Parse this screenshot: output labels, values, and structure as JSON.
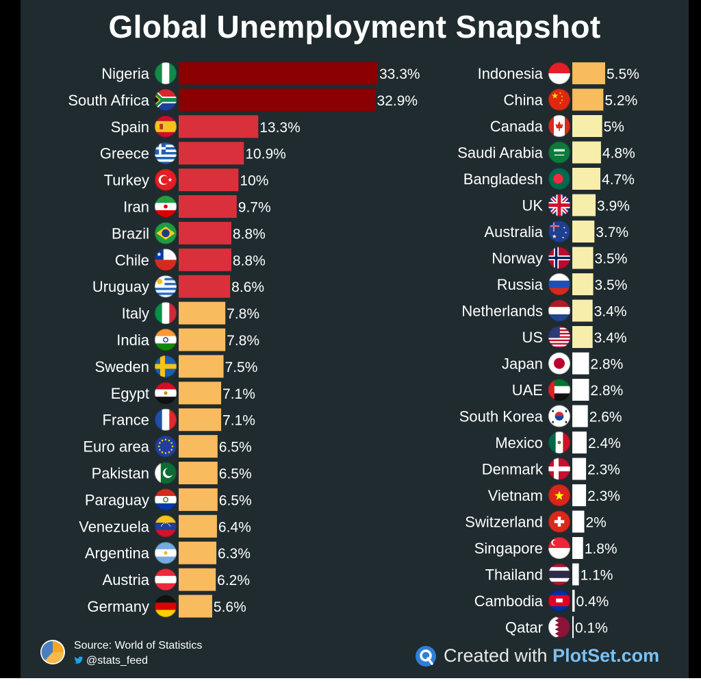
{
  "title": "Global Unemployment Snapshot",
  "footer": {
    "source": "Source: World of Statistics",
    "handle": "@stats_feed",
    "created_prefix": "Created with ",
    "brand": "PlotSet.com"
  },
  "colors": {
    "background": "#1f2b2f",
    "dark_red": "#8b0000",
    "red": "#d9303c",
    "orange": "#f8bb5e",
    "light_yellow": "#f8eeab",
    "white": "#ffffff"
  },
  "chart_data": {
    "type": "bar",
    "orientation": "horizontal",
    "unit": "%",
    "title": "Global Unemployment Snapshot",
    "xlabel": "",
    "ylabel": "",
    "grid": false,
    "legend": "none",
    "columns": [
      {
        "categories": [
          "Nigeria",
          "South Africa",
          "Spain",
          "Greece",
          "Turkey",
          "Iran",
          "Brazil",
          "Chile",
          "Uruguay",
          "Italy",
          "India",
          "Sweden",
          "Egypt",
          "France",
          "Euro area",
          "Pakistan",
          "Paraguay",
          "Venezuela",
          "Argentina",
          "Austria",
          "Germany"
        ],
        "values": [
          33.3,
          32.9,
          13.3,
          10.9,
          10,
          9.7,
          8.8,
          8.8,
          8.6,
          7.8,
          7.8,
          7.5,
          7.1,
          7.1,
          6.5,
          6.5,
          6.5,
          6.4,
          6.3,
          6.2,
          5.6
        ],
        "labels": [
          "33.3%",
          "32.9%",
          "13.3%",
          "10.9%",
          "10%",
          "9.7%",
          "8.8%",
          "8.8%",
          "8.6%",
          "7.8%",
          "7.8%",
          "7.5%",
          "7.1%",
          "7.1%",
          "6.5%",
          "6.5%",
          "6.5%",
          "6.4%",
          "6.3%",
          "6.2%",
          "5.6%"
        ],
        "flags": [
          "flag-nigeria-icon",
          "flag-south-africa-icon",
          "flag-spain-icon",
          "flag-greece-icon",
          "flag-turkey-icon",
          "flag-iran-icon",
          "flag-brazil-icon",
          "flag-chile-icon",
          "flag-uruguay-icon",
          "flag-italy-icon",
          "flag-india-icon",
          "flag-sweden-icon",
          "flag-egypt-icon",
          "flag-france-icon",
          "flag-euro-area-icon",
          "flag-pakistan-icon",
          "flag-paraguay-icon",
          "flag-venezuela-icon",
          "flag-argentina-icon",
          "flag-austria-icon",
          "flag-germany-icon"
        ]
      },
      {
        "categories": [
          "Indonesia",
          "China",
          "Canada",
          "Saudi Arabia",
          "Bangladesh",
          "UK",
          "Australia",
          "Norway",
          "Russia",
          "Netherlands",
          "US",
          "Japan",
          "UAE",
          "South Korea",
          "Mexico",
          "Denmark",
          "Vietnam",
          "Switzerland",
          "Singapore",
          "Thailand",
          "Cambodia",
          "Qatar"
        ],
        "values": [
          5.5,
          5.2,
          5,
          4.8,
          4.7,
          3.9,
          3.7,
          3.5,
          3.5,
          3.4,
          3.4,
          2.8,
          2.8,
          2.6,
          2.4,
          2.3,
          2.3,
          2,
          1.8,
          1.1,
          0.4,
          0.1
        ],
        "labels": [
          "5.5%",
          "5.2%",
          "5%",
          "4.8%",
          "4.7%",
          "3.9%",
          "3.7%",
          "3.5%",
          "3.5%",
          "3.4%",
          "3.4%",
          "2.8%",
          "2.8%",
          "2.6%",
          "2.4%",
          "2.3%",
          "2.3%",
          "2%",
          "1.8%",
          "1.1%",
          "0.4%",
          "0.1%"
        ],
        "flags": [
          "flag-indonesia-icon",
          "flag-china-icon",
          "flag-canada-icon",
          "flag-saudi-arabia-icon",
          "flag-bangladesh-icon",
          "flag-uk-icon",
          "flag-australia-icon",
          "flag-norway-icon",
          "flag-russia-icon",
          "flag-netherlands-icon",
          "flag-us-icon",
          "flag-japan-icon",
          "flag-uae-icon",
          "flag-south-korea-icon",
          "flag-mexico-icon",
          "flag-denmark-icon",
          "flag-vietnam-icon",
          "flag-switzerland-icon",
          "flag-singapore-icon",
          "flag-thailand-icon",
          "flag-cambodia-icon",
          "flag-qatar-icon"
        ]
      }
    ]
  }
}
